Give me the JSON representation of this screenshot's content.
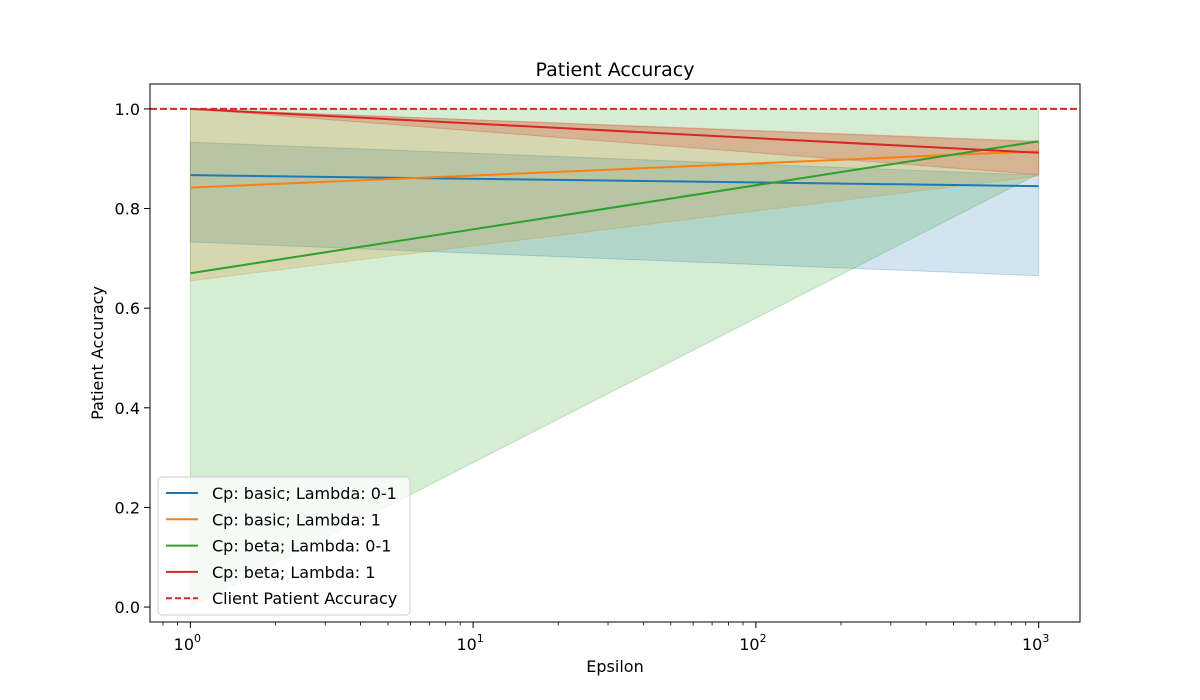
{
  "chart_data": {
    "type": "line",
    "title": "Patient Accuracy",
    "xlabel": "Epsilon",
    "ylabel": "Patient Accuracy",
    "x_scale": "log",
    "xlim": [
      0.72,
      1400
    ],
    "ylim": [
      -0.03,
      1.05
    ],
    "x_ticks": [
      {
        "value": 1,
        "base": "10",
        "exp": "0"
      },
      {
        "value": 10,
        "base": "10",
        "exp": "1"
      },
      {
        "value": 100,
        "base": "10",
        "exp": "2"
      },
      {
        "value": 1000,
        "base": "10",
        "exp": "3"
      }
    ],
    "y_ticks": [
      {
        "value": 0.0,
        "label": "0.0"
      },
      {
        "value": 0.2,
        "label": "0.2"
      },
      {
        "value": 0.4,
        "label": "0.4"
      },
      {
        "value": 0.6,
        "label": "0.6"
      },
      {
        "value": 0.8,
        "label": "0.8"
      },
      {
        "value": 1.0,
        "label": "1.0"
      }
    ],
    "x": [
      1,
      1000
    ],
    "series": [
      {
        "name": "Cp: basic; Lambda: 0-1",
        "color": "#1f77b4",
        "values": [
          0.867,
          0.845
        ],
        "lower": [
          0.733,
          0.665
        ],
        "upper": [
          0.933,
          0.867
        ]
      },
      {
        "name": "Cp: basic; Lambda: 1",
        "color": "#ff7f0e",
        "values": [
          0.842,
          0.915
        ],
        "lower": [
          0.655,
          0.865
        ],
        "upper": [
          1.0,
          0.933
        ]
      },
      {
        "name": "Cp: beta; Lambda: 0-1",
        "color": "#2ca02c",
        "values": [
          0.67,
          0.935
        ],
        "lower": [
          0.0,
          0.87
        ],
        "upper": [
          1.0,
          1.0
        ]
      },
      {
        "name": "Cp: beta; Lambda: 1",
        "color": "#d62728",
        "values": [
          1.0,
          0.912
        ],
        "lower": [
          1.0,
          0.868
        ],
        "upper": [
          1.0,
          0.935
        ]
      }
    ],
    "reference_line": {
      "name": "Client Patient Accuracy",
      "value": 1.0,
      "color": "#d62728",
      "style": "dashed"
    },
    "grid": false,
    "legend_position": "lower-left"
  }
}
